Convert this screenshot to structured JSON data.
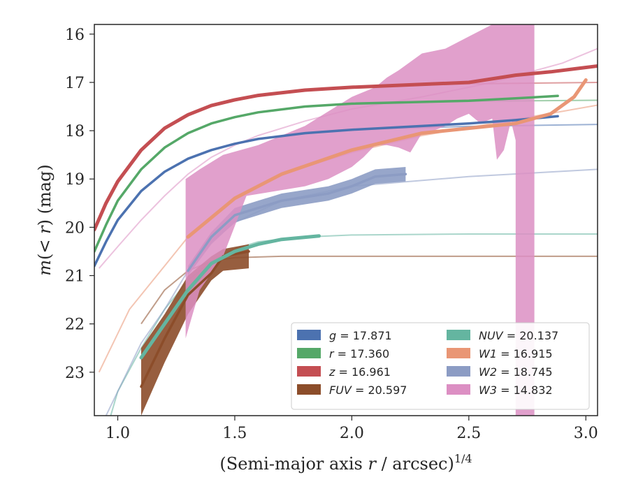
{
  "chart_data": {
    "type": "line",
    "xlabel": "(Semi-major axis r / arcsec)^{1/4}",
    "ylabel": "m(<r) (mag)",
    "xlim": [
      0.9,
      3.05
    ],
    "ylim": [
      23.9,
      15.8
    ],
    "y_inverted": true,
    "grid": false,
    "legend_placement": "lower-right",
    "x_ticks": [
      "1.0",
      "1.5",
      "2.0",
      "2.5",
      "3.0"
    ],
    "y_ticks": [
      "16",
      "17",
      "18",
      "19",
      "20",
      "21",
      "22",
      "23"
    ],
    "legend_columns": 2,
    "series": [
      {
        "key": "g",
        "legend": "g = 17.871",
        "color": "#4c72b0",
        "model": [
          [
            0.9,
            20.8
          ],
          [
            0.95,
            20.3
          ],
          [
            1.0,
            19.85
          ],
          [
            1.1,
            19.25
          ],
          [
            1.2,
            18.85
          ],
          [
            1.3,
            18.58
          ],
          [
            1.4,
            18.4
          ],
          [
            1.5,
            18.27
          ],
          [
            1.6,
            18.17
          ],
          [
            1.8,
            18.05
          ],
          [
            2.0,
            17.98
          ],
          [
            2.5,
            17.91
          ],
          [
            3.05,
            17.87
          ]
        ],
        "data": [
          [
            0.9,
            20.8
          ],
          [
            0.95,
            20.3
          ],
          [
            1.0,
            19.85
          ],
          [
            1.1,
            19.25
          ],
          [
            1.2,
            18.85
          ],
          [
            1.3,
            18.58
          ],
          [
            1.4,
            18.4
          ],
          [
            1.5,
            18.27
          ],
          [
            1.6,
            18.17
          ],
          [
            1.8,
            18.05
          ],
          [
            2.0,
            17.98
          ],
          [
            2.5,
            17.85
          ],
          [
            2.7,
            17.78
          ],
          [
            2.88,
            17.7
          ]
        ]
      },
      {
        "key": "r",
        "legend": "r = 17.360",
        "color": "#55a868",
        "model": [
          [
            0.9,
            20.5
          ],
          [
            0.95,
            19.95
          ],
          [
            1.0,
            19.45
          ],
          [
            1.1,
            18.8
          ],
          [
            1.2,
            18.35
          ],
          [
            1.3,
            18.05
          ],
          [
            1.4,
            17.85
          ],
          [
            1.5,
            17.72
          ],
          [
            1.6,
            17.62
          ],
          [
            1.8,
            17.5
          ],
          [
            2.0,
            17.44
          ],
          [
            2.5,
            17.39
          ],
          [
            3.05,
            17.37
          ]
        ],
        "data": [
          [
            0.9,
            20.5
          ],
          [
            0.95,
            19.95
          ],
          [
            1.0,
            19.45
          ],
          [
            1.1,
            18.8
          ],
          [
            1.2,
            18.35
          ],
          [
            1.3,
            18.05
          ],
          [
            1.4,
            17.85
          ],
          [
            1.5,
            17.72
          ],
          [
            1.6,
            17.62
          ],
          [
            1.8,
            17.5
          ],
          [
            2.0,
            17.44
          ],
          [
            2.5,
            17.38
          ],
          [
            2.7,
            17.33
          ],
          [
            2.88,
            17.28
          ]
        ]
      },
      {
        "key": "z",
        "legend": "z = 16.961",
        "color": "#c44e52",
        "model": [
          [
            0.9,
            20.05
          ],
          [
            0.95,
            19.5
          ],
          [
            1.0,
            19.05
          ],
          [
            1.1,
            18.4
          ],
          [
            1.2,
            17.95
          ],
          [
            1.3,
            17.67
          ],
          [
            1.4,
            17.48
          ],
          [
            1.5,
            17.36
          ],
          [
            1.6,
            17.27
          ],
          [
            1.8,
            17.16
          ],
          [
            2.0,
            17.1
          ],
          [
            2.5,
            17.03
          ],
          [
            3.05,
            17.0
          ]
        ],
        "data": [
          [
            0.9,
            20.05
          ],
          [
            0.95,
            19.5
          ],
          [
            1.0,
            19.05
          ],
          [
            1.1,
            18.4
          ],
          [
            1.2,
            17.95
          ],
          [
            1.3,
            17.67
          ],
          [
            1.4,
            17.48
          ],
          [
            1.5,
            17.36
          ],
          [
            1.6,
            17.27
          ],
          [
            1.8,
            17.16
          ],
          [
            2.0,
            17.1
          ],
          [
            2.5,
            17.0
          ],
          [
            2.7,
            16.85
          ],
          [
            2.85,
            16.78
          ],
          [
            2.95,
            16.72
          ],
          [
            3.05,
            16.66
          ]
        ]
      },
      {
        "key": "FUV",
        "legend": "FUV = 20.597",
        "color": "#8c4d2a",
        "model": [
          [
            1.1,
            22.0
          ],
          [
            1.2,
            21.3
          ],
          [
            1.3,
            20.9
          ],
          [
            1.4,
            20.7
          ],
          [
            1.5,
            20.63
          ],
          [
            1.7,
            20.6
          ],
          [
            2.0,
            20.6
          ],
          [
            3.05,
            20.6
          ]
        ],
        "data": [
          [
            1.1,
            23.3
          ],
          [
            1.2,
            22.3
          ],
          [
            1.3,
            21.4
          ],
          [
            1.4,
            20.95
          ],
          [
            1.45,
            20.6
          ],
          [
            1.56,
            20.5
          ]
        ],
        "band_upper": [
          [
            1.1,
            22.5
          ],
          [
            1.2,
            21.8
          ],
          [
            1.3,
            21.0
          ],
          [
            1.4,
            20.6
          ],
          [
            1.45,
            20.45
          ],
          [
            1.56,
            20.35
          ]
        ],
        "band_lower": [
          [
            1.1,
            23.9
          ],
          [
            1.2,
            22.8
          ],
          [
            1.3,
            21.8
          ],
          [
            1.4,
            21.1
          ],
          [
            1.45,
            20.9
          ],
          [
            1.56,
            20.85
          ]
        ]
      },
      {
        "key": "NUV",
        "legend": "NUV = 20.137",
        "color": "#64b5a0",
        "model": [
          [
            0.97,
            23.9
          ],
          [
            1.0,
            23.4
          ],
          [
            1.1,
            22.5
          ],
          [
            1.2,
            21.7
          ],
          [
            1.3,
            21.1
          ],
          [
            1.4,
            20.7
          ],
          [
            1.5,
            20.45
          ],
          [
            1.6,
            20.3
          ],
          [
            1.8,
            20.2
          ],
          [
            2.0,
            20.16
          ],
          [
            2.5,
            20.14
          ],
          [
            3.05,
            20.14
          ]
        ],
        "data": [
          [
            1.1,
            22.7
          ],
          [
            1.2,
            22.0
          ],
          [
            1.3,
            21.3
          ],
          [
            1.4,
            20.75
          ],
          [
            1.5,
            20.5
          ],
          [
            1.6,
            20.35
          ],
          [
            1.7,
            20.25
          ],
          [
            1.86,
            20.18
          ]
        ]
      },
      {
        "key": "W1",
        "legend": "W1 = 16.915",
        "color": "#e99675",
        "model": [
          [
            0.92,
            23.0
          ],
          [
            1.0,
            22.2
          ],
          [
            1.05,
            21.7
          ],
          [
            1.2,
            20.8
          ],
          [
            1.3,
            20.2
          ],
          [
            1.5,
            19.4
          ],
          [
            1.7,
            18.9
          ],
          [
            2.0,
            18.45
          ],
          [
            2.3,
            18.1
          ],
          [
            2.6,
            17.85
          ],
          [
            2.9,
            17.6
          ],
          [
            3.05,
            17.47
          ]
        ],
        "data": [
          [
            1.3,
            20.2
          ],
          [
            1.5,
            19.4
          ],
          [
            1.7,
            18.9
          ],
          [
            2.0,
            18.4
          ],
          [
            2.3,
            18.05
          ],
          [
            2.5,
            17.95
          ],
          [
            2.7,
            17.85
          ],
          [
            2.85,
            17.65
          ],
          [
            2.95,
            17.3
          ],
          [
            3.0,
            16.95
          ]
        ]
      },
      {
        "key": "W2",
        "legend": "W2 = 18.745",
        "color": "#8c9cc4",
        "model": [
          [
            0.95,
            23.9
          ],
          [
            1.05,
            22.9
          ],
          [
            1.1,
            22.4
          ],
          [
            1.2,
            21.7
          ],
          [
            1.3,
            20.9
          ],
          [
            1.4,
            20.3
          ],
          [
            1.5,
            19.9
          ],
          [
            1.7,
            19.45
          ],
          [
            2.0,
            19.15
          ],
          [
            2.5,
            18.95
          ],
          [
            3.05,
            18.8
          ]
        ],
        "data": [
          [
            1.3,
            20.9
          ],
          [
            1.4,
            20.2
          ],
          [
            1.5,
            19.75
          ],
          [
            1.6,
            19.6
          ],
          [
            1.7,
            19.45
          ],
          [
            1.9,
            19.3
          ],
          [
            2.0,
            19.15
          ],
          [
            2.1,
            18.95
          ],
          [
            2.23,
            18.9
          ]
        ],
        "band_upper": [
          [
            1.3,
            20.8
          ],
          [
            1.4,
            20.1
          ],
          [
            1.5,
            19.6
          ],
          [
            1.6,
            19.45
          ],
          [
            1.7,
            19.3
          ],
          [
            1.9,
            19.15
          ],
          [
            2.0,
            19.0
          ],
          [
            2.1,
            18.8
          ],
          [
            2.23,
            18.75
          ]
        ],
        "band_lower": [
          [
            1.3,
            21.0
          ],
          [
            1.4,
            20.35
          ],
          [
            1.5,
            19.9
          ],
          [
            1.6,
            19.75
          ],
          [
            1.7,
            19.6
          ],
          [
            1.9,
            19.45
          ],
          [
            2.0,
            19.3
          ],
          [
            2.1,
            19.1
          ],
          [
            2.23,
            19.05
          ]
        ]
      },
      {
        "key": "W3",
        "legend": "W3 = 14.832",
        "color": "#dc8fc3",
        "model": [
          [
            0.92,
            20.85
          ],
          [
            1.0,
            20.4
          ],
          [
            1.1,
            19.85
          ],
          [
            1.2,
            19.35
          ],
          [
            1.3,
            18.9
          ],
          [
            1.4,
            18.55
          ],
          [
            1.5,
            18.3
          ],
          [
            1.6,
            18.1
          ],
          [
            1.8,
            17.8
          ],
          [
            2.0,
            17.55
          ],
          [
            2.3,
            17.3
          ],
          [
            2.6,
            17.0
          ],
          [
            2.9,
            16.6
          ],
          [
            3.05,
            16.3
          ]
        ],
        "band_upper": [
          [
            1.29,
            19.0
          ],
          [
            1.35,
            18.8
          ],
          [
            1.45,
            18.5
          ],
          [
            1.6,
            18.3
          ],
          [
            1.8,
            17.9
          ],
          [
            1.9,
            17.6
          ],
          [
            2.0,
            17.3
          ],
          [
            2.1,
            17.1
          ],
          [
            2.15,
            16.9
          ],
          [
            2.2,
            16.75
          ],
          [
            2.3,
            16.4
          ],
          [
            2.4,
            16.3
          ],
          [
            2.5,
            16.05
          ],
          [
            2.6,
            15.8
          ],
          [
            2.68,
            15.8
          ],
          [
            2.78,
            15.8
          ]
        ],
        "band_lower": [
          [
            1.29,
            22.3
          ],
          [
            1.35,
            21.3
          ],
          [
            1.45,
            20.6
          ],
          [
            1.55,
            19.35
          ],
          [
            1.8,
            19.15
          ],
          [
            1.9,
            19.0
          ],
          [
            2.0,
            18.75
          ],
          [
            2.05,
            18.55
          ],
          [
            2.1,
            18.3
          ],
          [
            2.15,
            18.3
          ],
          [
            2.2,
            18.35
          ],
          [
            2.25,
            18.45
          ],
          [
            2.3,
            18.05
          ],
          [
            2.35,
            18.0
          ],
          [
            2.4,
            17.9
          ],
          [
            2.45,
            17.75
          ],
          [
            2.5,
            17.65
          ],
          [
            2.55,
            17.85
          ],
          [
            2.6,
            17.75
          ],
          [
            2.62,
            18.6
          ],
          [
            2.65,
            18.4
          ],
          [
            2.68,
            17.8
          ],
          [
            2.7,
            18.2
          ],
          [
            2.7,
            23.9
          ],
          [
            2.78,
            23.9
          ]
        ]
      }
    ]
  }
}
